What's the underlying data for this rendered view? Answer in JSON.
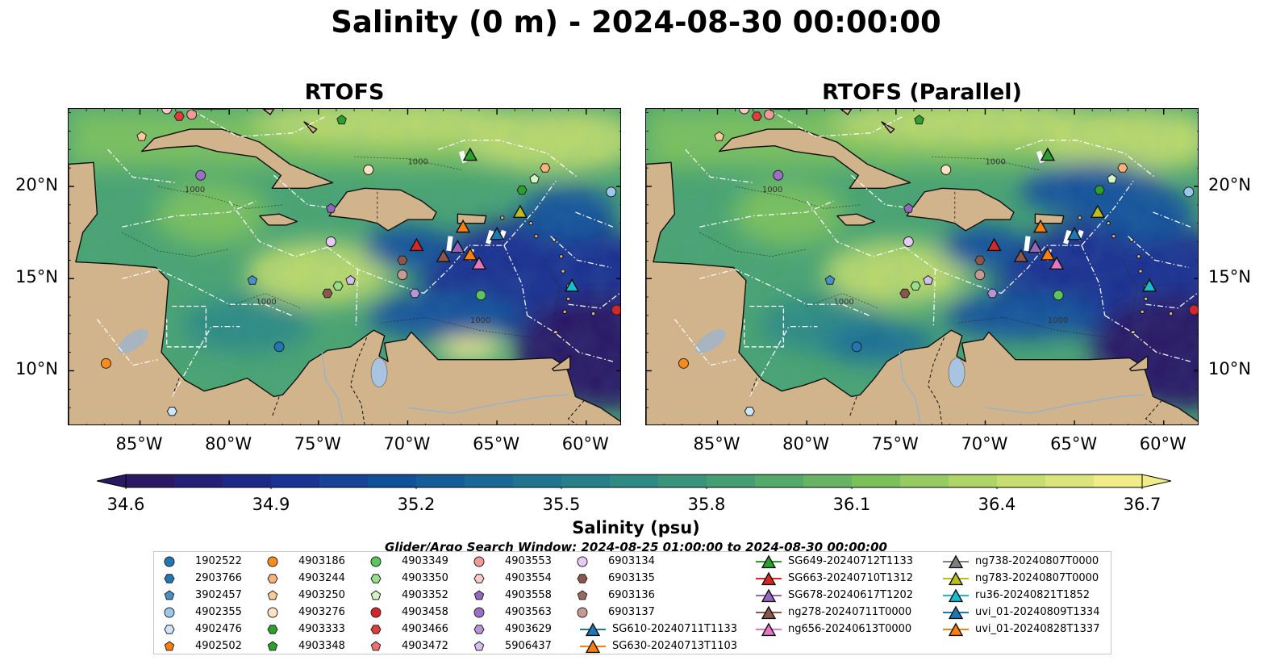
{
  "title": "Salinity (0 m) - 2024-08-30 00:00:00",
  "panels": [
    {
      "title": "RTOFS"
    },
    {
      "title": "RTOFS (Parallel)"
    }
  ],
  "map": {
    "lon_range": [
      -89,
      -58
    ],
    "lat_range": [
      7,
      24.2
    ],
    "lon_ticks": [
      "85°W",
      "80°W",
      "75°W",
      "70°W",
      "65°W",
      "60°W"
    ],
    "lat_ticks": [
      "20°N",
      "15°N",
      "10°N"
    ],
    "contour_labels": [
      "1000",
      "1000",
      "1000",
      "1000"
    ],
    "land_color": "#d2b48c",
    "lake_color": "#a8c4e0"
  },
  "colorbar": {
    "label": "Salinity (psu)",
    "ticks": [
      "34.6",
      "34.9",
      "35.2",
      "35.5",
      "35.8",
      "36.1",
      "36.4",
      "36.7"
    ],
    "range": [
      34.6,
      36.7
    ],
    "colormap": "haline",
    "colors": [
      "#2a1863",
      "#1b2d8f",
      "#12519a",
      "#1d6e93",
      "#2f8a83",
      "#4aa36f",
      "#7cc05c",
      "#bcd96a",
      "#f1ec8a"
    ]
  },
  "search_window": "Glider/Argo Search Window: 2024-08-25 01:00:00 to 2024-08-30 00:00:00",
  "legend": {
    "argo": [
      {
        "id": "1902522",
        "color": "#1f77b4",
        "shape": "circle"
      },
      {
        "id": "2903766",
        "color": "#1f77b4",
        "shape": "hexagon"
      },
      {
        "id": "3902457",
        "color": "#4a90c8",
        "shape": "pentagon"
      },
      {
        "id": "4902355",
        "color": "#9cc7ee",
        "shape": "circle"
      },
      {
        "id": "4902476",
        "color": "#cde6f8",
        "shape": "hexagon"
      },
      {
        "id": "4902502",
        "color": "#ff7f0e",
        "shape": "pentagon"
      },
      {
        "id": "4903186",
        "color": "#ff8c1a",
        "shape": "circle"
      },
      {
        "id": "4903244",
        "color": "#ffb37a",
        "shape": "hexagon"
      },
      {
        "id": "4903250",
        "color": "#ffcc99",
        "shape": "pentagon"
      },
      {
        "id": "4903276",
        "color": "#ffe3c2",
        "shape": "circle"
      },
      {
        "id": "4903333",
        "color": "#2ca02c",
        "shape": "hexagon"
      },
      {
        "id": "4903348",
        "color": "#2ca02c",
        "shape": "pentagon"
      },
      {
        "id": "4903349",
        "color": "#5cc65c",
        "shape": "circle"
      },
      {
        "id": "4903350",
        "color": "#98df8a",
        "shape": "hexagon"
      },
      {
        "id": "4903352",
        "color": "#d2f5c8",
        "shape": "pentagon"
      },
      {
        "id": "4903458",
        "color": "#d62728",
        "shape": "circle"
      },
      {
        "id": "4903466",
        "color": "#e03c3c",
        "shape": "hexagon"
      },
      {
        "id": "4903472",
        "color": "#f07070",
        "shape": "pentagon"
      },
      {
        "id": "4903553",
        "color": "#f29a9a",
        "shape": "circle"
      },
      {
        "id": "4903554",
        "color": "#fbc9c9",
        "shape": "hexagon"
      },
      {
        "id": "4903558",
        "color": "#9467bd",
        "shape": "pentagon"
      },
      {
        "id": "4903563",
        "color": "#9b6fc6",
        "shape": "circle"
      },
      {
        "id": "4903629",
        "color": "#b594da",
        "shape": "hexagon"
      },
      {
        "id": "5906437",
        "color": "#d5bff0",
        "shape": "pentagon"
      },
      {
        "id": "6903134",
        "color": "#e6ccf5",
        "shape": "circle"
      },
      {
        "id": "6903135",
        "color": "#8c564b",
        "shape": "hexagon"
      },
      {
        "id": "6903136",
        "color": "#9a6a5c",
        "shape": "pentagon"
      },
      {
        "id": "6903137",
        "color": "#c49c94",
        "shape": "circle"
      }
    ],
    "gliders": [
      {
        "id": "SG610-20240711T1133",
        "color": "#1f77b4"
      },
      {
        "id": "SG630-20240713T1103",
        "color": "#ff7f0e"
      },
      {
        "id": "SG649-20240712T1133",
        "color": "#2ca02c"
      },
      {
        "id": "SG663-20240710T1312",
        "color": "#d62728"
      },
      {
        "id": "SG678-20240617T1202",
        "color": "#9467bd"
      },
      {
        "id": "ng278-20240711T0000",
        "color": "#8c564b"
      },
      {
        "id": "ng656-20240613T0000",
        "color": "#e377c2"
      },
      {
        "id": "ng738-20240807T0000",
        "color": "#7f7f7f"
      },
      {
        "id": "ng783-20240807T0000",
        "color": "#bcbd22"
      },
      {
        "id": "ru36-20240821T1852",
        "color": "#17becf"
      },
      {
        "id": "uvi_01-20240809T1334",
        "color": "#1f77b4"
      },
      {
        "id": "uvi_01-20240828T1337",
        "color": "#ff7f0e"
      }
    ]
  },
  "markers": [
    {
      "lon": -83.5,
      "lat": 24.2,
      "color": "#fbc9c9",
      "shape": "circle"
    },
    {
      "lon": -82.8,
      "lat": 23.8,
      "color": "#e03c3c",
      "shape": "hexagon"
    },
    {
      "lon": -82.1,
      "lat": 23.9,
      "color": "#f29a9a",
      "shape": "circle"
    },
    {
      "lon": -84.9,
      "lat": 22.7,
      "color": "#ffcc99",
      "shape": "pentagon"
    },
    {
      "lon": -81.6,
      "lat": 20.6,
      "color": "#9b6fc6",
      "shape": "circle"
    },
    {
      "lon": -78.7,
      "lat": 14.9,
      "color": "#4a90c8",
      "shape": "pentagon"
    },
    {
      "lon": -77.2,
      "lat": 11.3,
      "color": "#1f77b4",
      "shape": "circle"
    },
    {
      "lon": -86.9,
      "lat": 10.4,
      "color": "#ff8c1a",
      "shape": "circle"
    },
    {
      "lon": -83.2,
      "lat": 7.8,
      "color": "#cde6f8",
      "shape": "hexagon"
    },
    {
      "lon": -74.3,
      "lat": 17.0,
      "color": "#e6ccf5",
      "shape": "circle"
    },
    {
      "lon": -74.3,
      "lat": 18.8,
      "color": "#9467bd",
      "shape": "pentagon"
    },
    {
      "lon": -73.9,
      "lat": 14.6,
      "color": "#98df8a",
      "shape": "hexagon"
    },
    {
      "lon": -73.2,
      "lat": 14.9,
      "color": "#d5bff0",
      "shape": "pentagon"
    },
    {
      "lon": -74.5,
      "lat": 14.2,
      "color": "#8c564b",
      "shape": "hexagon"
    },
    {
      "lon": -72.2,
      "lat": 20.9,
      "color": "#ffe3c2",
      "shape": "circle"
    },
    {
      "lon": -73.7,
      "lat": 23.6,
      "color": "#2ca02c",
      "shape": "pentagon"
    },
    {
      "lon": -70.3,
      "lat": 16.0,
      "color": "#8c564b",
      "shape": "hexagon"
    },
    {
      "lon": -70.3,
      "lat": 15.2,
      "color": "#c49c94",
      "shape": "circle"
    },
    {
      "lon": -69.6,
      "lat": 14.2,
      "color": "#b594da",
      "shape": "hexagon"
    },
    {
      "lon": -65.9,
      "lat": 14.1,
      "color": "#5cc65c",
      "shape": "circle"
    },
    {
      "lon": -63.6,
      "lat": 19.8,
      "color": "#2ca02c",
      "shape": "hexagon"
    },
    {
      "lon": -62.9,
      "lat": 20.4,
      "color": "#d2f5c8",
      "shape": "pentagon"
    },
    {
      "lon": -62.3,
      "lat": 21.0,
      "color": "#ffb37a",
      "shape": "hexagon"
    },
    {
      "lon": -58.6,
      "lat": 19.7,
      "color": "#9cc7ee",
      "shape": "circle"
    },
    {
      "lon": -58.3,
      "lat": 13.3,
      "color": "#d62728",
      "shape": "circle"
    }
  ],
  "glider_markers": [
    {
      "lon": -66.5,
      "lat": 21.7,
      "color": "#2ca02c"
    },
    {
      "lon": -66.9,
      "lat": 17.8,
      "color": "#ff7f0e"
    },
    {
      "lon": -69.5,
      "lat": 16.8,
      "color": "#d62728"
    },
    {
      "lon": -68.0,
      "lat": 16.2,
      "color": "#8c564b"
    },
    {
      "lon": -67.2,
      "lat": 16.7,
      "color": "#9467bd"
    },
    {
      "lon": -66.5,
      "lat": 16.3,
      "color": "#ff7f0e"
    },
    {
      "lon": -66.0,
      "lat": 15.8,
      "color": "#e377c2"
    },
    {
      "lon": -65.0,
      "lat": 17.4,
      "color": "#1f77b4"
    },
    {
      "lon": -63.7,
      "lat": 18.6,
      "color": "#bcbd22"
    },
    {
      "lon": -60.8,
      "lat": 14.6,
      "color": "#17becf"
    }
  ]
}
